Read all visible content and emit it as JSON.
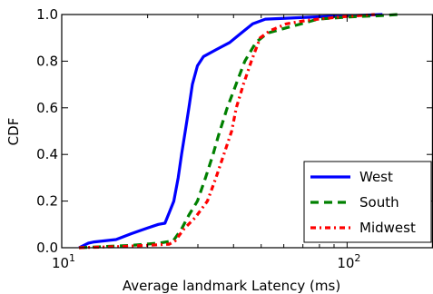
{
  "chart_data": {
    "type": "line",
    "title": "",
    "xlabel": "Average landmark Latency (ms)",
    "ylabel": "CDF",
    "x_scale": "log",
    "xlim": [
      10,
      200
    ],
    "ylim": [
      0.0,
      1.0
    ],
    "grid": false,
    "legend_position": "bottom-right",
    "x_ticks": [
      {
        "value": 10,
        "base": "10",
        "exp": "1"
      },
      {
        "value": 100,
        "base": "10",
        "exp": "2"
      }
    ],
    "y_ticks": [
      {
        "value": 0.0,
        "label": "0.0"
      },
      {
        "value": 0.2,
        "label": "0.2"
      },
      {
        "value": 0.4,
        "label": "0.4"
      },
      {
        "value": 0.6,
        "label": "0.6"
      },
      {
        "value": 0.8,
        "label": "0.8"
      },
      {
        "value": 1.0,
        "label": "1.0"
      }
    ],
    "series": [
      {
        "name": "West",
        "color": "#0000ff",
        "style": "solid",
        "points": [
          [
            11.5,
            0.0
          ],
          [
            12.4,
            0.02
          ],
          [
            13.0,
            0.025
          ],
          [
            15.5,
            0.035
          ],
          [
            17.5,
            0.06
          ],
          [
            20.0,
            0.085
          ],
          [
            21.8,
            0.1
          ],
          [
            23.0,
            0.105
          ],
          [
            23.8,
            0.15
          ],
          [
            24.7,
            0.2
          ],
          [
            25.6,
            0.3
          ],
          [
            26.3,
            0.4
          ],
          [
            27.1,
            0.5
          ],
          [
            27.9,
            0.6
          ],
          [
            28.7,
            0.7
          ],
          [
            29.9,
            0.78
          ],
          [
            31.4,
            0.82
          ],
          [
            34.8,
            0.85
          ],
          [
            38.8,
            0.88
          ],
          [
            42.5,
            0.92
          ],
          [
            46.7,
            0.96
          ],
          [
            51.7,
            0.98
          ],
          [
            78.0,
            0.99
          ],
          [
            102.0,
            0.995
          ],
          [
            133.0,
            1.0
          ]
        ]
      },
      {
        "name": "South",
        "color": "#008000",
        "style": "dashed",
        "points": [
          [
            11.5,
            0.0
          ],
          [
            17.5,
            0.01
          ],
          [
            22.0,
            0.02
          ],
          [
            24.6,
            0.03
          ],
          [
            26.3,
            0.08
          ],
          [
            27.9,
            0.14
          ],
          [
            29.9,
            0.2
          ],
          [
            31.9,
            0.3
          ],
          [
            33.9,
            0.4
          ],
          [
            35.4,
            0.48
          ],
          [
            38.0,
            0.6
          ],
          [
            40.8,
            0.7
          ],
          [
            43.8,
            0.8
          ],
          [
            47.9,
            0.88
          ],
          [
            52.5,
            0.92
          ],
          [
            60.0,
            0.94
          ],
          [
            69.0,
            0.96
          ],
          [
            79.0,
            0.98
          ],
          [
            102.0,
            0.99
          ],
          [
            130.0,
            0.995
          ],
          [
            150.0,
            1.0
          ]
        ]
      },
      {
        "name": "Midwest",
        "color": "#ff0000",
        "style": "dashdot",
        "points": [
          [
            11.5,
            0.0
          ],
          [
            16.0,
            0.005
          ],
          [
            20.0,
            0.01
          ],
          [
            23.8,
            0.015
          ],
          [
            25.0,
            0.03
          ],
          [
            26.8,
            0.08
          ],
          [
            29.4,
            0.13
          ],
          [
            32.4,
            0.2
          ],
          [
            34.7,
            0.3
          ],
          [
            37.0,
            0.4
          ],
          [
            39.4,
            0.5
          ],
          [
            40.9,
            0.6
          ],
          [
            43.3,
            0.7
          ],
          [
            46.2,
            0.8
          ],
          [
            49.6,
            0.9
          ],
          [
            53.6,
            0.93
          ],
          [
            61.2,
            0.96
          ],
          [
            72.4,
            0.975
          ],
          [
            95.0,
            0.99
          ],
          [
            125.0,
            1.0
          ]
        ]
      }
    ]
  }
}
